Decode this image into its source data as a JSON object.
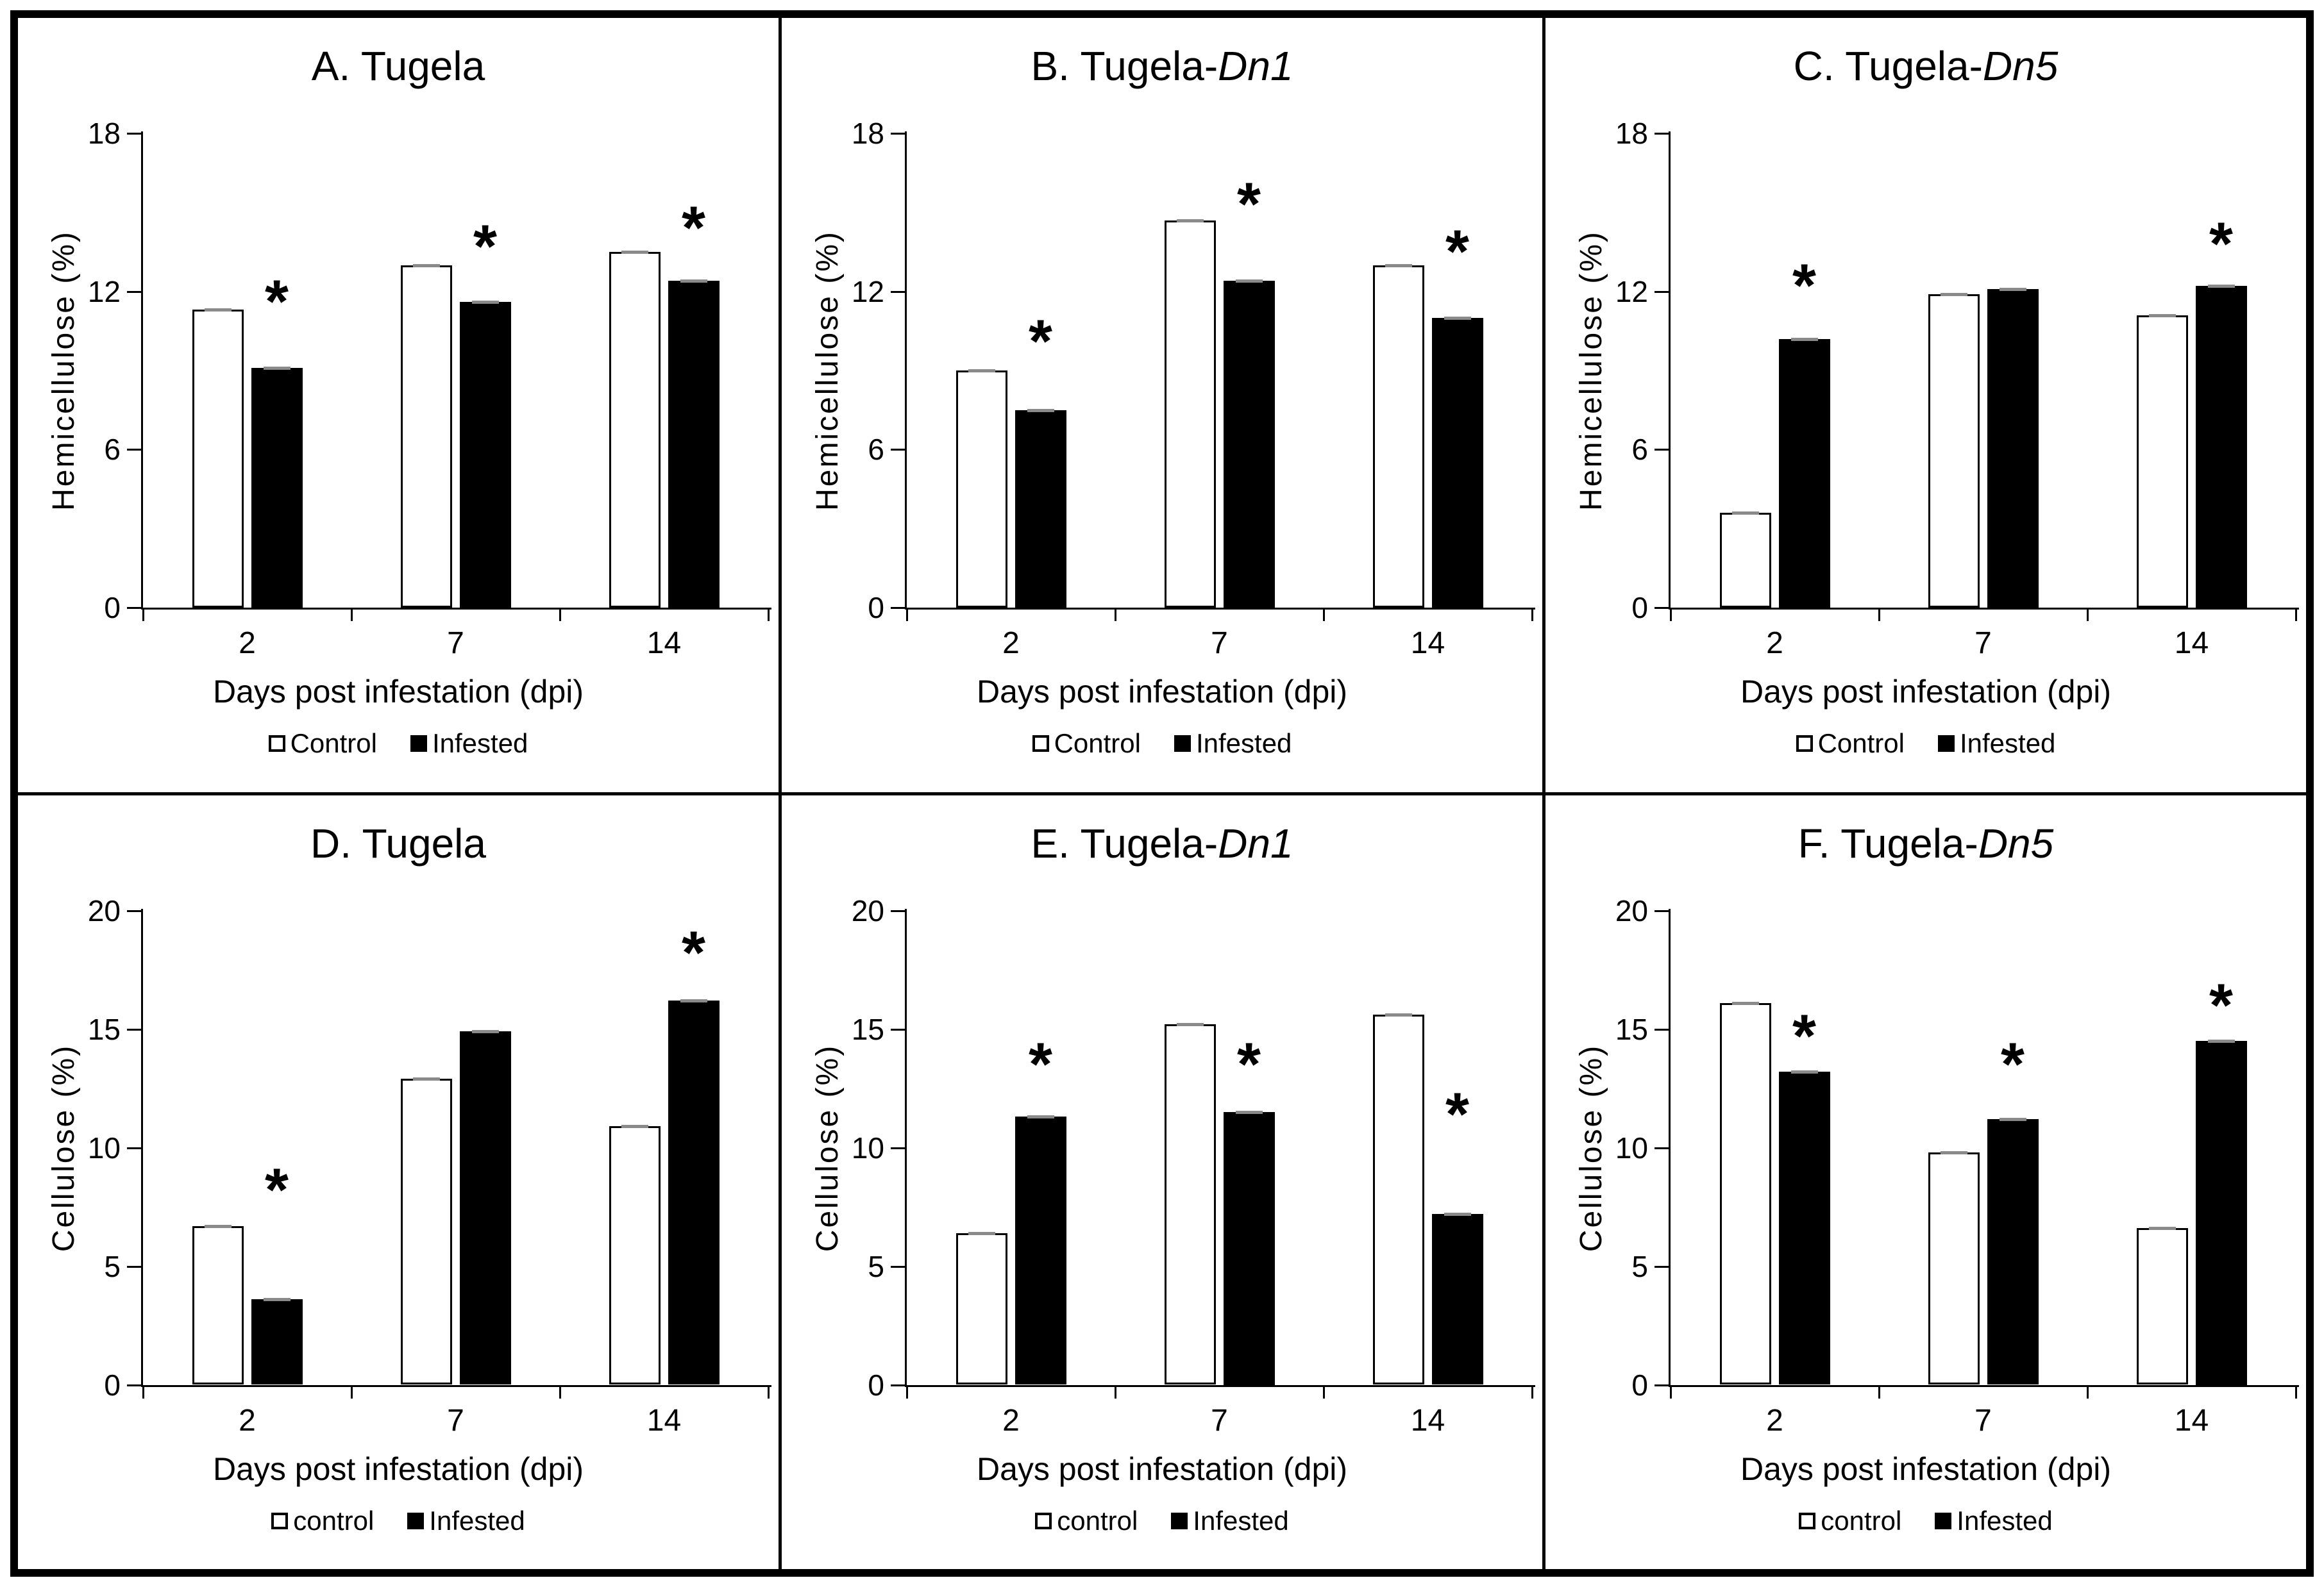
{
  "significance_marker": "*",
  "colors": {
    "control_fill": "#ffffff",
    "infested_fill": "#000000",
    "axis": "#000000",
    "error_cap": "#8a8a8a",
    "border": "#000000"
  },
  "chart_data": [
    {
      "id": "A",
      "type": "bar",
      "title_prefix": "A. Tugela",
      "title_italic": "",
      "ylabel": "Hemicellulose (%)",
      "xlabel": "Days post infestation (dpi)",
      "ylim": [
        0,
        18
      ],
      "yticks": [
        0,
        6,
        12,
        18
      ],
      "categories": [
        "2",
        "7",
        "14"
      ],
      "series": [
        {
          "name": "Control",
          "values": [
            11.3,
            13.0,
            13.5
          ]
        },
        {
          "name": "Infested",
          "values": [
            9.1,
            11.6,
            12.4
          ]
        }
      ],
      "asterisks": [
        {
          "group": 0,
          "y": 11.6
        },
        {
          "group": 1,
          "y": 13.7
        },
        {
          "group": 2,
          "y": 14.4
        }
      ],
      "legend": [
        "Control",
        "Infested"
      ],
      "grid": false,
      "legend_position": "bottom"
    },
    {
      "id": "B",
      "type": "bar",
      "title_prefix": "B. Tugela-",
      "title_italic": "Dn1",
      "ylabel": "Hemicellulose (%)",
      "xlabel": "Days post infestation (dpi)",
      "ylim": [
        0,
        18
      ],
      "yticks": [
        0,
        6,
        12,
        18
      ],
      "categories": [
        "2",
        "7",
        "14"
      ],
      "series": [
        {
          "name": "Control",
          "values": [
            9.0,
            14.7,
            13.0
          ]
        },
        {
          "name": "Infested",
          "values": [
            7.5,
            12.4,
            11.0
          ]
        }
      ],
      "asterisks": [
        {
          "group": 0,
          "y": 10.1
        },
        {
          "group": 1,
          "y": 15.3
        },
        {
          "group": 2,
          "y": 13.5
        }
      ],
      "legend": [
        "Control",
        "Infested"
      ],
      "grid": false,
      "legend_position": "bottom"
    },
    {
      "id": "C",
      "type": "bar",
      "title_prefix": "C. Tugela-",
      "title_italic": "Dn5",
      "ylabel": "Hemicellulose (%)",
      "xlabel": "Days post infestation (dpi)",
      "ylim": [
        0,
        18
      ],
      "yticks": [
        0,
        6,
        12,
        18
      ],
      "categories": [
        "2",
        "7",
        "14"
      ],
      "series": [
        {
          "name": "Control",
          "values": [
            3.6,
            11.9,
            11.1
          ]
        },
        {
          "name": "Infested",
          "values": [
            10.2,
            12.1,
            12.2
          ]
        }
      ],
      "asterisks": [
        {
          "group": 0,
          "y": 12.2
        },
        {
          "group": 2,
          "y": 13.8
        }
      ],
      "legend": [
        "Control",
        "Infested"
      ],
      "grid": false,
      "legend_position": "bottom"
    },
    {
      "id": "D",
      "type": "bar",
      "title_prefix": "D. Tugela",
      "title_italic": "",
      "ylabel": "Cellulose (%)",
      "xlabel": "Days post infestation (dpi)",
      "ylim": [
        0,
        20
      ],
      "yticks": [
        0,
        5,
        10,
        15,
        20
      ],
      "categories": [
        "2",
        "7",
        "14"
      ],
      "series": [
        {
          "name": "control",
          "values": [
            6.7,
            12.9,
            10.9
          ]
        },
        {
          "name": "Infested",
          "values": [
            3.6,
            14.9,
            16.2
          ]
        }
      ],
      "asterisks": [
        {
          "group": 0,
          "y": 8.2
        },
        {
          "group": 2,
          "y": 18.2
        }
      ],
      "legend": [
        "control",
        "Infested"
      ],
      "grid": false,
      "legend_position": "bottom"
    },
    {
      "id": "E",
      "type": "bar",
      "title_prefix": "E. Tugela-",
      "title_italic": "Dn1",
      "ylabel": "Cellulose (%)",
      "xlabel": "Days post infestation (dpi)",
      "ylim": [
        0,
        20
      ],
      "yticks": [
        0,
        5,
        10,
        15,
        20
      ],
      "categories": [
        "2",
        "7",
        "14"
      ],
      "series": [
        {
          "name": "control",
          "values": [
            6.4,
            15.2,
            15.6
          ]
        },
        {
          "name": "Infested",
          "values": [
            11.3,
            11.5,
            7.2
          ]
        }
      ],
      "asterisks": [
        {
          "group": 0,
          "y": 13.5
        },
        {
          "group": 1,
          "y": 13.5
        },
        {
          "group": 2,
          "y": 11.4
        }
      ],
      "legend": [
        "control",
        "Infested"
      ],
      "grid": false,
      "legend_position": "bottom"
    },
    {
      "id": "F",
      "type": "bar",
      "title_prefix": "F. Tugela-",
      "title_italic": "Dn5",
      "ylabel": "Cellulose (%)",
      "xlabel": "Days post infestation (dpi)",
      "ylim": [
        0,
        20
      ],
      "yticks": [
        0,
        5,
        10,
        15,
        20
      ],
      "categories": [
        "2",
        "7",
        "14"
      ],
      "series": [
        {
          "name": "control",
          "values": [
            16.1,
            9.8,
            6.6
          ]
        },
        {
          "name": "Infested",
          "values": [
            13.2,
            11.2,
            14.5
          ]
        }
      ],
      "asterisks": [
        {
          "group": 0,
          "y": 14.7
        },
        {
          "group": 1,
          "y": 13.5
        },
        {
          "group": 2,
          "y": 16.0
        }
      ],
      "legend": [
        "control",
        "Infested"
      ],
      "grid": false,
      "legend_position": "bottom"
    }
  ]
}
